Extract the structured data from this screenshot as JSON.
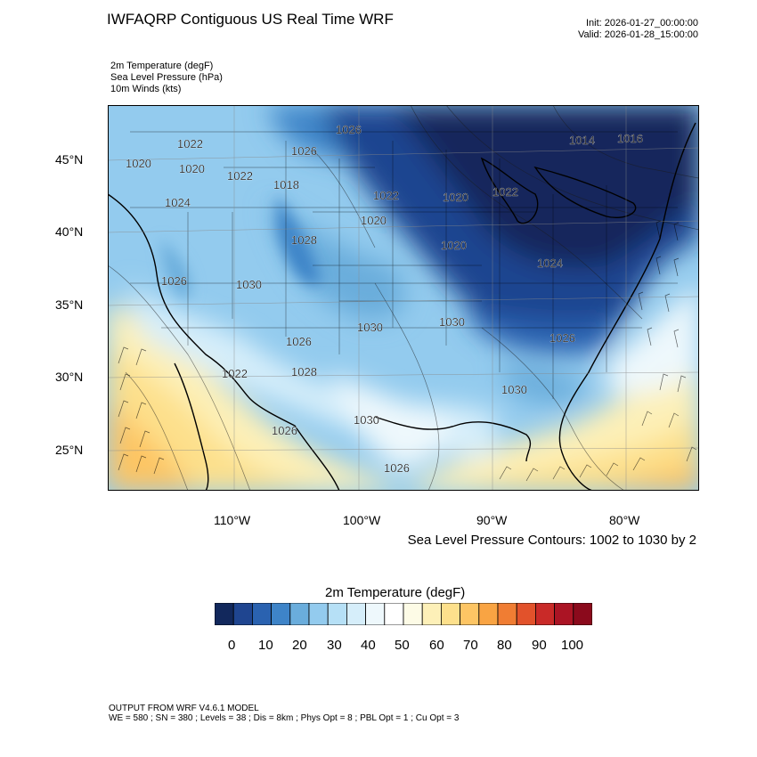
{
  "title": "IWFAQRP Contiguous US Real Time WRF",
  "init": "Init: 2026-01-27_00:00:00",
  "valid": "Valid: 2026-01-28_15:00:00",
  "fields": [
    "2m Temperature   (degF)",
    "Sea Level Pressure   (hPa)",
    "10m Winds   (kts)"
  ],
  "lat_labels": [
    "45°N",
    "40°N",
    "35°N",
    "30°N",
    "25°N"
  ],
  "lon_labels": [
    "110°W",
    "100°W",
    "90°W",
    "80°W"
  ],
  "contour_note": "Sea Level Pressure Contours: 1002 to 1030 by 2",
  "pressure_labels": [
    "1022",
    "1020",
    "1026",
    "1018",
    "1022",
    "1020",
    "1024",
    "1026",
    "1022",
    "1020",
    "1022",
    "1014",
    "1016",
    "1020",
    "1028",
    "1030",
    "1026",
    "1020",
    "1024",
    "1030",
    "1026",
    "1030",
    "1028",
    "1030",
    "1026",
    "1030",
    "1022",
    "1026"
  ],
  "colorbar": {
    "title": "2m Temperature  (degF)",
    "labels": [
      "0",
      "10",
      "20",
      "30",
      "40",
      "50",
      "60",
      "70",
      "80",
      "90",
      "100"
    ],
    "colors": [
      "#12285c",
      "#1f4590",
      "#2a62b0",
      "#3e84c8",
      "#6aaddc",
      "#93cbee",
      "#b6e0f6",
      "#d6eefa",
      "#eef8fc",
      "#ffffff",
      "#fdfbe6",
      "#fdf0b8",
      "#fde08c",
      "#fdc564",
      "#f9a443",
      "#f07d33",
      "#e2522b",
      "#c92a28",
      "#ab1424",
      "#8b0a1c"
    ]
  },
  "footer": {
    "line1": "OUTPUT FROM WRF V4.6.1 MODEL",
    "line2": "WE = 580 ; SN = 380 ; Levels = 38 ; Dis = 8km ; Phys Opt = 8 ; PBL Opt = 1 ; Cu Opt = 3"
  }
}
